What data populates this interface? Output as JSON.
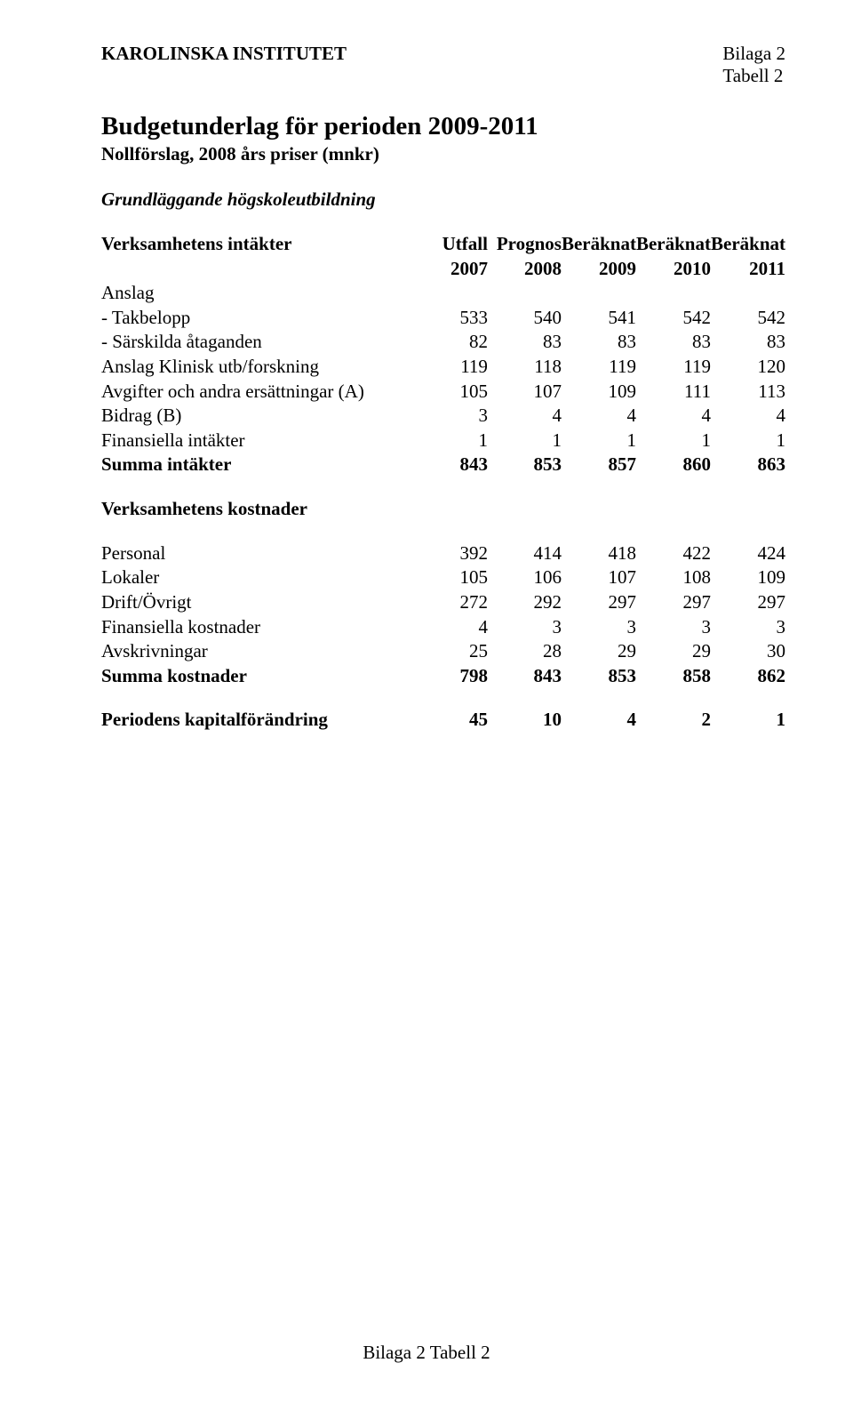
{
  "header": {
    "left": "KAROLINSKA INSTITUTET",
    "right_line1": "Bilaga 2",
    "right_line2": "Tabell 2"
  },
  "title": {
    "main": "Budgetunderlag för perioden 2009-2011",
    "sub": "Nollförslag, 2008 års priser (mnkr)",
    "section": "Grundläggande högskoleutbildning"
  },
  "columns": {
    "row1": [
      "Utfall",
      "Prognos",
      "Beräknat",
      "Beräknat",
      "Beräknat"
    ],
    "row2": [
      "2007",
      "2008",
      "2009",
      "2010",
      "2011"
    ]
  },
  "intakter": {
    "heading": "Verksamhetens intäkter",
    "anslag_label": "Anslag",
    "rows": [
      {
        "label": " - Takbelopp",
        "v": [
          "533",
          "540",
          "541",
          "542",
          "542"
        ]
      },
      {
        "label": " - Särskilda åtaganden",
        "v": [
          "82",
          "83",
          "83",
          "83",
          "83"
        ]
      },
      {
        "label": "Anslag Klinisk utb/forskning",
        "v": [
          "119",
          "118",
          "119",
          "119",
          "120"
        ]
      },
      {
        "label": "Avgifter och andra ersättningar (A)",
        "v": [
          "105",
          "107",
          "109",
          "111",
          "113"
        ]
      },
      {
        "label": "Bidrag (B)",
        "v": [
          "3",
          "4",
          "4",
          "4",
          "4"
        ]
      },
      {
        "label": "Finansiella intäkter",
        "v": [
          "1",
          "1",
          "1",
          "1",
          "1"
        ]
      }
    ],
    "sum": {
      "label": "Summa intäkter",
      "v": [
        "843",
        "853",
        "857",
        "860",
        "863"
      ]
    }
  },
  "kostnader": {
    "heading": "Verksamhetens kostnader",
    "rows": [
      {
        "label": "Personal",
        "v": [
          "392",
          "414",
          "418",
          "422",
          "424"
        ]
      },
      {
        "label": "Lokaler",
        "v": [
          "105",
          "106",
          "107",
          "108",
          "109"
        ]
      },
      {
        "label": "Drift/Övrigt",
        "v": [
          "272",
          "292",
          "297",
          "297",
          "297"
        ]
      },
      {
        "label": "Finansiella kostnader",
        "v": [
          "4",
          "3",
          "3",
          "3",
          "3"
        ]
      },
      {
        "label": "Avskrivningar",
        "v": [
          "25",
          "28",
          "29",
          "29",
          "30"
        ]
      }
    ],
    "sum": {
      "label": "Summa kostnader",
      "v": [
        "798",
        "843",
        "853",
        "858",
        "862"
      ]
    }
  },
  "period": {
    "label": "Periodens kapitalförändring",
    "v": [
      "45",
      "10",
      "4",
      "2",
      "1"
    ]
  },
  "footer": "Bilaga 2 Tabell 2"
}
